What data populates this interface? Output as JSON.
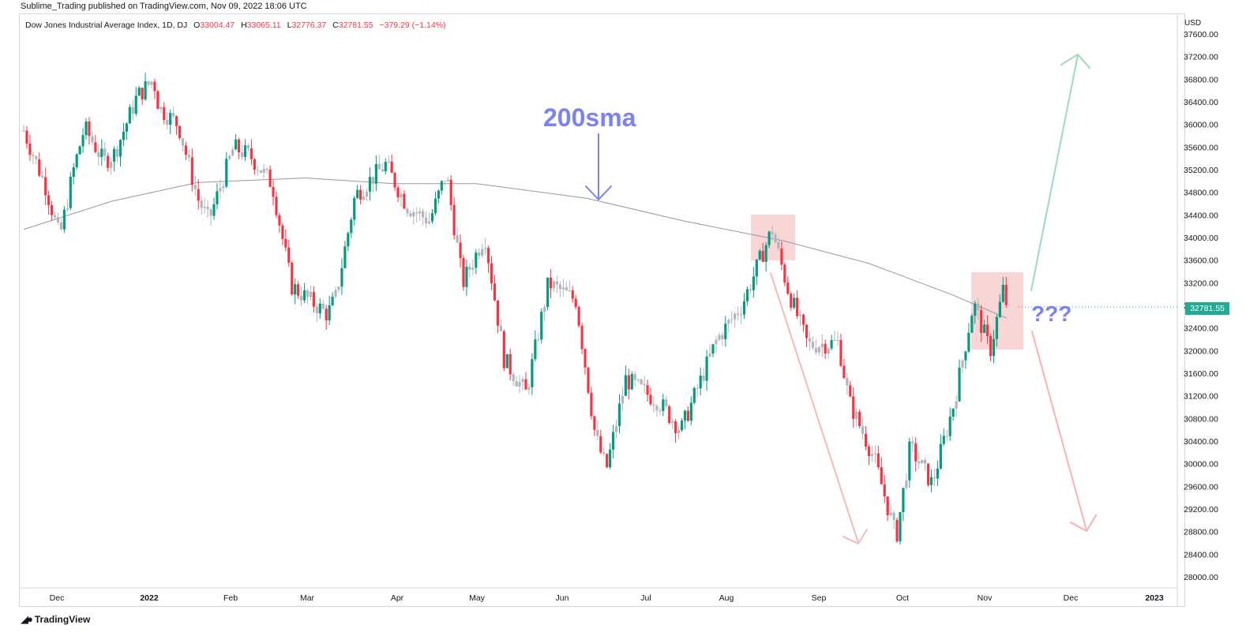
{
  "header": {
    "published": "Sublime_Trading published on TradingView.com, Nov 09, 2022 18:06 UTC"
  },
  "legend": {
    "symbol": "Dow Jones Industrial Average Index, 1D, DJ",
    "o_label": "O",
    "o": "33004.47",
    "h_label": "H",
    "h": "33065.11",
    "l_label": "L",
    "l": "32776.37",
    "c_label": "C",
    "c": "32781.55",
    "change": "−379.29 (−1.14%)"
  },
  "currency": "USD",
  "last_price": "32781.55",
  "footer": {
    "brand": "TradingView",
    "logo_icon": "tradingview-logo-icon"
  },
  "colors": {
    "up_strong": "#089981",
    "down_strong": "#f23645",
    "neutral": "#b2b5be",
    "sma": "#9598a1",
    "annotation_blue": "#7b83f3",
    "arrow_green": "#a5dcc1",
    "arrow_red": "#f6b8b8",
    "box_red": "#f8cfcf"
  },
  "annotations": {
    "sma_label": "200sma",
    "question": "???"
  },
  "chart_data": {
    "type": "candlestick",
    "title": "Dow Jones Industrial Average Index, 1D, DJ",
    "ylim": [
      27800,
      37800
    ],
    "y_ticks": [
      "28000.00",
      "28400.00",
      "28800.00",
      "29200.00",
      "29600.00",
      "30000.00",
      "30400.00",
      "30800.00",
      "31200.00",
      "31600.00",
      "32000.00",
      "32400.00",
      "32800.00",
      "33200.00",
      "33600.00",
      "34000.00",
      "34400.00",
      "34800.00",
      "35200.00",
      "35600.00",
      "36000.00",
      "36400.00",
      "36800.00",
      "37200.00",
      "37600.00"
    ],
    "x_ticks": [
      "Dec",
      "2022",
      "Feb",
      "Mar",
      "Apr",
      "May",
      "Jun",
      "Jul",
      "Aug",
      "Sep",
      "Oct",
      "Nov",
      "Dec",
      "2023"
    ],
    "price_path": [
      {
        "date": "2021-11-18",
        "close": 35900
      },
      {
        "date": "2021-11-26",
        "close": 34900
      },
      {
        "date": "2021-12-01",
        "close": 34000
      },
      {
        "date": "2021-12-06",
        "close": 35200
      },
      {
        "date": "2021-12-10",
        "close": 35950
      },
      {
        "date": "2021-12-17",
        "close": 35350
      },
      {
        "date": "2021-12-21",
        "close": 35500
      },
      {
        "date": "2021-12-29",
        "close": 36500
      },
      {
        "date": "2022-01-04",
        "close": 36800
      },
      {
        "date": "2022-01-06",
        "close": 36300
      },
      {
        "date": "2022-01-13",
        "close": 36000
      },
      {
        "date": "2022-01-20",
        "close": 34700
      },
      {
        "date": "2022-01-24",
        "close": 34300
      },
      {
        "date": "2022-02-02",
        "close": 35600
      },
      {
        "date": "2022-02-08",
        "close": 35450
      },
      {
        "date": "2022-02-16",
        "close": 34950
      },
      {
        "date": "2022-02-23",
        "close": 33150
      },
      {
        "date": "2022-03-08",
        "close": 32650
      },
      {
        "date": "2022-03-11",
        "close": 32950
      },
      {
        "date": "2022-03-18",
        "close": 34750
      },
      {
        "date": "2022-03-29",
        "close": 35300
      },
      {
        "date": "2022-04-06",
        "close": 34550
      },
      {
        "date": "2022-04-14",
        "close": 34300
      },
      {
        "date": "2022-04-20",
        "close": 35150
      },
      {
        "date": "2022-04-26",
        "close": 33200
      },
      {
        "date": "2022-05-04",
        "close": 34050
      },
      {
        "date": "2022-05-11",
        "close": 31850
      },
      {
        "date": "2022-05-19",
        "close": 31250
      },
      {
        "date": "2022-05-27",
        "close": 33200
      },
      {
        "date": "2022-06-06",
        "close": 32900
      },
      {
        "date": "2022-06-13",
        "close": 30500
      },
      {
        "date": "2022-06-17",
        "close": 29900
      },
      {
        "date": "2022-06-24",
        "close": 31500
      },
      {
        "date": "2022-07-06",
        "close": 31100
      },
      {
        "date": "2022-07-14",
        "close": 30600
      },
      {
        "date": "2022-07-27",
        "close": 32200
      },
      {
        "date": "2022-08-05",
        "close": 32800
      },
      {
        "date": "2022-08-16",
        "close": 34150
      },
      {
        "date": "2022-08-22",
        "close": 33050
      },
      {
        "date": "2022-08-29",
        "close": 32100
      },
      {
        "date": "2022-09-09",
        "close": 32150
      },
      {
        "date": "2022-09-13",
        "close": 31100
      },
      {
        "date": "2022-09-22",
        "close": 30100
      },
      {
        "date": "2022-09-30",
        "close": 28700
      },
      {
        "date": "2022-10-05",
        "close": 30300
      },
      {
        "date": "2022-10-13",
        "close": 29650
      },
      {
        "date": "2022-10-21",
        "close": 31100
      },
      {
        "date": "2022-10-28",
        "close": 32850
      },
      {
        "date": "2022-11-03",
        "close": 32000
      },
      {
        "date": "2022-11-08",
        "close": 33150
      },
      {
        "date": "2022-11-09",
        "close": 32781.55
      }
    ],
    "sma_200": [
      {
        "date": "2021-11-18",
        "value": 34150
      },
      {
        "date": "2021-12-20",
        "value": 34650
      },
      {
        "date": "2022-01-20",
        "value": 34980
      },
      {
        "date": "2022-02-28",
        "value": 35060
      },
      {
        "date": "2022-04-01",
        "value": 34960
      },
      {
        "date": "2022-05-01",
        "value": 34960
      },
      {
        "date": "2022-06-10",
        "value": 34700
      },
      {
        "date": "2022-07-15",
        "value": 34300
      },
      {
        "date": "2022-08-20",
        "value": 33950
      },
      {
        "date": "2022-09-20",
        "value": 33550
      },
      {
        "date": "2022-10-20",
        "value": 33000
      },
      {
        "date": "2022-11-09",
        "value": 32580
      }
    ]
  }
}
